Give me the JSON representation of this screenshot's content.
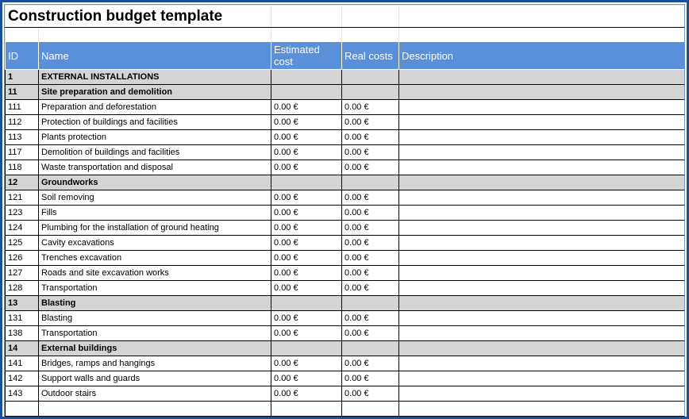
{
  "title": "Construction budget template",
  "headers": [
    "ID",
    "Name",
    "Estimated cost",
    "Real costs",
    "Description"
  ],
  "rows": [
    [
      "1",
      "EXTERNAL INSTALLATIONS"
    ],
    [
      "11",
      "Site preparation and demolition"
    ],
    [
      "111",
      "Preparation and deforestation",
      "0.00 €",
      "0.00 €"
    ],
    [
      "112",
      "Protection of buildings and facilities",
      "0.00 €",
      "0.00 €"
    ],
    [
      "113",
      "Plants protection",
      "0.00 €",
      "0.00 €"
    ],
    [
      "117",
      "Demolition of buildings and facilities",
      "0.00 €",
      "0.00 €"
    ],
    [
      "118",
      "Waste transportation and disposal",
      "0.00 €",
      "0.00 €"
    ],
    [
      "12",
      "Groundworks"
    ],
    [
      "121",
      "Soil removing",
      "0.00 €",
      "0.00 €"
    ],
    [
      "123",
      "Fills",
      "0.00 €",
      "0.00 €"
    ],
    [
      "124",
      "Plumbing for the installation of ground heating",
      "0.00 €",
      "0.00 €"
    ],
    [
      "125",
      "Cavity excavations",
      "0.00 €",
      "0.00 €"
    ],
    [
      "126",
      "Trenches excavation",
      "0.00 €",
      "0.00 €"
    ],
    [
      "127",
      "Roads and site excavation works",
      "0.00 €",
      "0.00 €"
    ],
    [
      "128",
      "Transportation",
      "0.00 €",
      "0.00 €"
    ],
    [
      "13",
      "Blasting"
    ],
    [
      "131",
      "Blasting",
      "0.00 €",
      "0.00 €"
    ],
    [
      "138",
      "Transportation",
      "0.00 €",
      "0.00 €"
    ],
    [
      "14",
      "External buildings"
    ],
    [
      "141",
      "Bridges, ramps and hangings",
      "0.00 €",
      "0.00 €"
    ],
    [
      "142",
      "Support walls and guards",
      "0.00 €",
      "0.00 €"
    ],
    [
      "143",
      "Outdoor stairs",
      "0.00 €",
      "0.00 €"
    ]
  ]
}
